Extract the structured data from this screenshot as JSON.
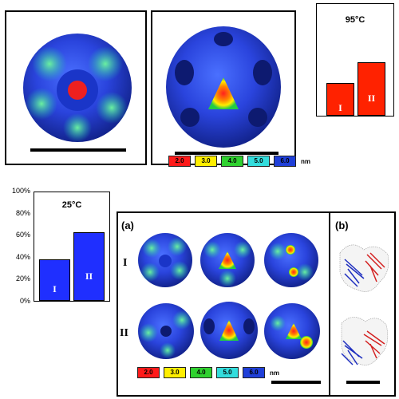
{
  "legend": {
    "items": [
      {
        "label": "2.0",
        "color": "#ff1a1a"
      },
      {
        "label": "3.0",
        "color": "#ffee00"
      },
      {
        "label": "4.0",
        "color": "#2fd12f"
      },
      {
        "label": "5.0",
        "color": "#33dddd"
      },
      {
        "label": "6.0",
        "color": "#1f3fd8"
      }
    ],
    "unit": "nm"
  },
  "chart_data": [
    {
      "type": "bar",
      "title": "95°C",
      "categories": [
        "I",
        "II"
      ],
      "values": [
        38,
        62
      ],
      "color": "#ff2200",
      "ylim": [
        0,
        100
      ],
      "yticks": []
    },
    {
      "type": "bar",
      "title": "25°C",
      "categories": [
        "I",
        "II"
      ],
      "values": [
        38,
        63
      ],
      "color": "#1f2fff",
      "ylim": [
        0,
        100
      ],
      "yticks": [
        "0%",
        "20%",
        "40%",
        "60%",
        "80%",
        "100%"
      ]
    }
  ],
  "figure": {
    "panel_a": "(a)",
    "panel_b": "(b)",
    "row_labels": [
      "I",
      "II"
    ]
  }
}
